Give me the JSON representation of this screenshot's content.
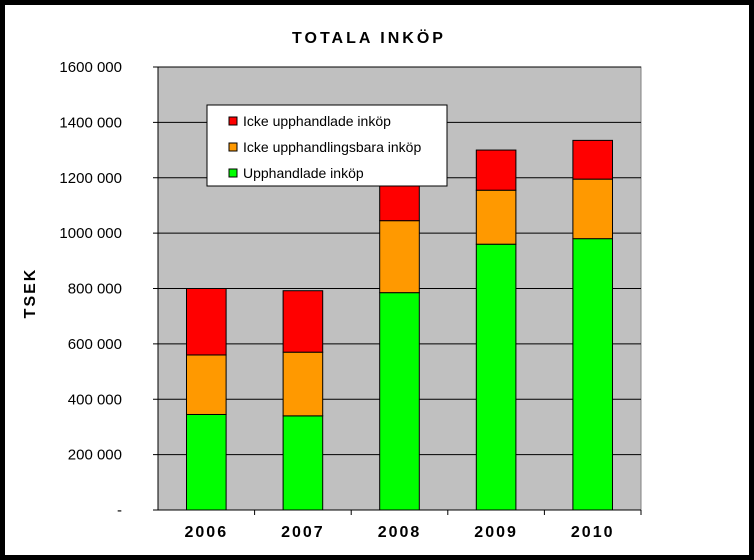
{
  "chart_data": {
    "type": "bar",
    "stacked": true,
    "title": "TOTALA INKÖP",
    "xlabel": "",
    "ylabel": "TSEK",
    "categories": [
      "2006",
      "2007",
      "2008",
      "2009",
      "2010"
    ],
    "ylim": [
      0,
      1600000
    ],
    "yticks": [
      0,
      200000,
      400000,
      600000,
      800000,
      1000000,
      1200000,
      1400000,
      1600000
    ],
    "ytick_labels": [
      "-",
      "200 000",
      "400 000",
      "600 000",
      "800 000",
      "1000 000",
      "1200 000",
      "1400 000",
      "1600 000"
    ],
    "grid": true,
    "legend_position": "top-left inside",
    "plot_background": "#c0c0c0",
    "series": [
      {
        "name": "Upphandlade inköp",
        "color": "#00ff00",
        "values": [
          345000,
          340000,
          785000,
          960000,
          980000
        ]
      },
      {
        "name": "Icke upphandlingsbara inköp",
        "color": "#ff9900",
        "values": [
          215000,
          230000,
          260000,
          195000,
          215000
        ]
      },
      {
        "name": "Icke upphandlade inköp",
        "color": "#ff0000",
        "values": [
          240000,
          222000,
          165000,
          145000,
          140000
        ]
      }
    ],
    "legend_order": [
      2,
      1,
      0
    ]
  }
}
